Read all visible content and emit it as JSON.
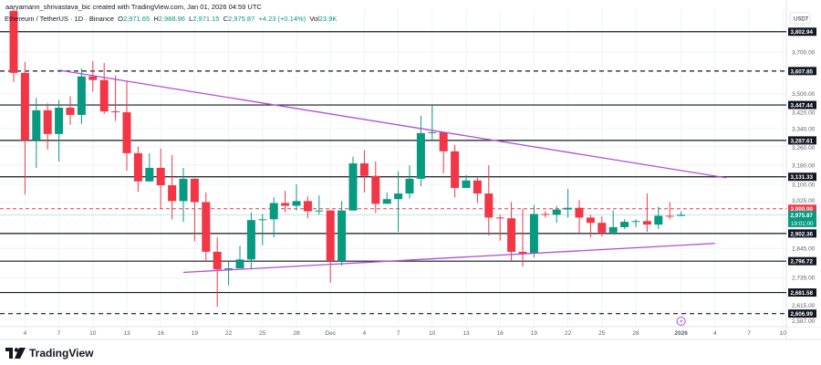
{
  "header": {
    "credit": "aaryamann_shrivastava_bic created with TradingView.com, Jan 01, 2026 04:59 UTC"
  },
  "legend": {
    "symbol": "Ethereum / TetherUS · 1D · Binance",
    "o_label": "O",
    "o": "2,971.65",
    "h_label": "H",
    "h": "2,988.96",
    "l_label": "L",
    "l": "2,971.15",
    "c_label": "C",
    "c": "2,975.87",
    "change": "+4.23 (+0.14%)",
    "vol_label": "Vol",
    "vol": "23.9K"
  },
  "logo": {
    "text": "TradingView"
  },
  "chart_data": {
    "type": "candlestick",
    "currency": "USDT",
    "y_scale": "log",
    "ylim": [
      2580,
      3930
    ],
    "colors": {
      "up": "#089981",
      "down": "#F23645",
      "trendline": "#B04FD6",
      "level": "#131722",
      "alert": "#F23645"
    },
    "candles": [
      {
        "d": "2025-11-03",
        "o": 3910,
        "h": 3920,
        "l": 3556,
        "c": 3599
      },
      {
        "d": "2025-11-04",
        "o": 3599,
        "h": 3652,
        "l": 3058,
        "c": 3288
      },
      {
        "d": "2025-11-05",
        "o": 3288,
        "h": 3480,
        "l": 3169,
        "c": 3423
      },
      {
        "d": "2025-11-06",
        "o": 3423,
        "h": 3455,
        "l": 3248,
        "c": 3316
      },
      {
        "d": "2025-11-07",
        "o": 3316,
        "h": 3471,
        "l": 3196,
        "c": 3435
      },
      {
        "d": "2025-11-08",
        "o": 3435,
        "h": 3488,
        "l": 3357,
        "c": 3402
      },
      {
        "d": "2025-11-09",
        "o": 3402,
        "h": 3621,
        "l": 3361,
        "c": 3582
      },
      {
        "d": "2025-11-10",
        "o": 3582,
        "h": 3656,
        "l": 3509,
        "c": 3565
      },
      {
        "d": "2025-11-11",
        "o": 3565,
        "h": 3647,
        "l": 3406,
        "c": 3418
      },
      {
        "d": "2025-11-12",
        "o": 3418,
        "h": 3586,
        "l": 3374,
        "c": 3414
      },
      {
        "d": "2025-11-13",
        "o": 3414,
        "h": 3560,
        "l": 3157,
        "c": 3232
      },
      {
        "d": "2025-11-14",
        "o": 3232,
        "h": 3260,
        "l": 3069,
        "c": 3112
      },
      {
        "d": "2025-11-15",
        "o": 3112,
        "h": 3232,
        "l": 3112,
        "c": 3169
      },
      {
        "d": "2025-11-16",
        "o": 3169,
        "h": 3252,
        "l": 3000,
        "c": 3096
      },
      {
        "d": "2025-11-17",
        "o": 3096,
        "h": 3224,
        "l": 2958,
        "c": 3031
      },
      {
        "d": "2025-11-18",
        "o": 3031,
        "h": 3169,
        "l": 2948,
        "c": 3123
      },
      {
        "d": "2025-11-19",
        "o": 3123,
        "h": 3125,
        "l": 2872,
        "c": 3027
      },
      {
        "d": "2025-11-20",
        "o": 3027,
        "h": 3066,
        "l": 2794,
        "c": 2832
      },
      {
        "d": "2025-11-21",
        "o": 2832,
        "h": 2887,
        "l": 2631,
        "c": 2766
      },
      {
        "d": "2025-11-22",
        "o": 2766,
        "h": 2797,
        "l": 2708,
        "c": 2770
      },
      {
        "d": "2025-11-23",
        "o": 2770,
        "h": 2855,
        "l": 2770,
        "c": 2803
      },
      {
        "d": "2025-11-24",
        "o": 2803,
        "h": 2986,
        "l": 2766,
        "c": 2955
      },
      {
        "d": "2025-11-25",
        "o": 2955,
        "h": 2979,
        "l": 2857,
        "c": 2958
      },
      {
        "d": "2025-11-26",
        "o": 2958,
        "h": 3046,
        "l": 2887,
        "c": 3023
      },
      {
        "d": "2025-11-27",
        "o": 3023,
        "h": 3073,
        "l": 2986,
        "c": 3012
      },
      {
        "d": "2025-11-28",
        "o": 3012,
        "h": 3100,
        "l": 2993,
        "c": 3031
      },
      {
        "d": "2025-11-29",
        "o": 3031,
        "h": 3050,
        "l": 2962,
        "c": 2990
      },
      {
        "d": "2025-11-30",
        "o": 2990,
        "h": 3054,
        "l": 2976,
        "c": 2993
      },
      {
        "d": "2025-12-01",
        "o": 2993,
        "h": 2995,
        "l": 2717,
        "c": 2797
      },
      {
        "d": "2025-12-02",
        "o": 2797,
        "h": 3031,
        "l": 2780,
        "c": 2993
      },
      {
        "d": "2025-12-03",
        "o": 2993,
        "h": 3216,
        "l": 2993,
        "c": 3188
      },
      {
        "d": "2025-12-04",
        "o": 3188,
        "h": 3244,
        "l": 3066,
        "c": 3135
      },
      {
        "d": "2025-12-05",
        "o": 3135,
        "h": 3196,
        "l": 2983,
        "c": 3020
      },
      {
        "d": "2025-12-06",
        "o": 3020,
        "h": 3066,
        "l": 3020,
        "c": 3039
      },
      {
        "d": "2025-12-07",
        "o": 3039,
        "h": 3154,
        "l": 2909,
        "c": 3062
      },
      {
        "d": "2025-12-08",
        "o": 3062,
        "h": 3180,
        "l": 3042,
        "c": 3123
      },
      {
        "d": "2025-12-09",
        "o": 3123,
        "h": 3398,
        "l": 3092,
        "c": 3320
      },
      {
        "d": "2025-12-10",
        "o": 3320,
        "h": 3447,
        "l": 3292,
        "c": 3324
      },
      {
        "d": "2025-12-11",
        "o": 3324,
        "h": 3326,
        "l": 3146,
        "c": 3240
      },
      {
        "d": "2025-12-12",
        "o": 3240,
        "h": 3268,
        "l": 3046,
        "c": 3085
      },
      {
        "d": "2025-12-13",
        "o": 3085,
        "h": 3139,
        "l": 3085,
        "c": 3116
      },
      {
        "d": "2025-12-14",
        "o": 3116,
        "h": 3127,
        "l": 3023,
        "c": 3062
      },
      {
        "d": "2025-12-15",
        "o": 3062,
        "h": 3180,
        "l": 2894,
        "c": 2965
      },
      {
        "d": "2025-12-16",
        "o": 2965,
        "h": 2976,
        "l": 2875,
        "c": 2962
      },
      {
        "d": "2025-12-17",
        "o": 2962,
        "h": 3027,
        "l": 2794,
        "c": 2832
      },
      {
        "d": "2025-12-18",
        "o": 2832,
        "h": 3000,
        "l": 2777,
        "c": 2826
      },
      {
        "d": "2025-12-19",
        "o": 2826,
        "h": 3016,
        "l": 2810,
        "c": 2979
      },
      {
        "d": "2025-12-20",
        "o": 2979,
        "h": 2990,
        "l": 2965,
        "c": 2976
      },
      {
        "d": "2025-12-21",
        "o": 2976,
        "h": 3012,
        "l": 2944,
        "c": 2997
      },
      {
        "d": "2025-12-22",
        "o": 2997,
        "h": 3081,
        "l": 2965,
        "c": 3004
      },
      {
        "d": "2025-12-23",
        "o": 3004,
        "h": 3035,
        "l": 2906,
        "c": 2965
      },
      {
        "d": "2025-12-24",
        "o": 2965,
        "h": 2976,
        "l": 2887,
        "c": 2944
      },
      {
        "d": "2025-12-25",
        "o": 2944,
        "h": 2969,
        "l": 2891,
        "c": 2906
      },
      {
        "d": "2025-12-26",
        "o": 2906,
        "h": 2993,
        "l": 2898,
        "c": 2927
      },
      {
        "d": "2025-12-27",
        "o": 2927,
        "h": 2958,
        "l": 2920,
        "c": 2948
      },
      {
        "d": "2025-12-28",
        "o": 2948,
        "h": 2958,
        "l": 2927,
        "c": 2951
      },
      {
        "d": "2025-12-29",
        "o": 2951,
        "h": 3062,
        "l": 2909,
        "c": 2937
      },
      {
        "d": "2025-12-30",
        "o": 2937,
        "h": 3008,
        "l": 2920,
        "c": 2972
      },
      {
        "d": "2025-12-31",
        "o": 2972,
        "h": 3027,
        "l": 2958,
        "c": 2969
      },
      {
        "d": "2026-01-01",
        "o": 2971.65,
        "h": 2988.96,
        "l": 2971.15,
        "c": 2975.87
      }
    ],
    "levels": [
      {
        "price": 3802.94,
        "label": "3,802.94",
        "style": "solid"
      },
      {
        "price": 3607.85,
        "label": "3,607.85",
        "style": "dashed"
      },
      {
        "price": 3447.44,
        "label": "3,447.44",
        "style": "solid"
      },
      {
        "price": 3287.61,
        "label": "3,287.61",
        "style": "solid"
      },
      {
        "price": 3131.33,
        "label": "3,131.33",
        "style": "solid"
      },
      {
        "price": 2902.36,
        "label": "2,902.36",
        "style": "solid"
      },
      {
        "price": 2796.72,
        "label": "2,796.72",
        "style": "solid"
      },
      {
        "price": 2681.58,
        "label": "2,681.58",
        "style": "solid"
      },
      {
        "price": 2606.99,
        "label": "2,606.99",
        "style": "dashed"
      }
    ],
    "alert_line": {
      "price": 3000.0,
      "label": "3,000.00"
    },
    "last_price": {
      "price": 2975.87,
      "label": "2,975.87",
      "countdown": "19:01:00"
    },
    "trendlines": [
      {
        "from": {
          "d": "2025-11-07",
          "p": 3612
        },
        "to": {
          "d": "2026-01-05",
          "p": 3127
        }
      },
      {
        "from": {
          "d": "2025-11-18",
          "p": 2755
        },
        "to": {
          "d": "2026-01-04",
          "p": 2864
        }
      }
    ],
    "y_ticks": [
      {
        "p": 3700,
        "label": "3,700.00"
      },
      {
        "p": 3500,
        "label": "3,500.00"
      },
      {
        "p": 3420,
        "label": "3,420.00"
      },
      {
        "p": 3340,
        "label": "3,340.00"
      },
      {
        "p": 3260,
        "label": "3,260.00"
      },
      {
        "p": 3180,
        "label": "3,180.00"
      },
      {
        "p": 3100,
        "label": "3,100.00"
      },
      {
        "p": 3025,
        "label": "3,025.00"
      },
      {
        "p": 2845,
        "label": "2,845.00"
      },
      {
        "p": 2735,
        "label": "2,735.00"
      },
      {
        "p": 2615,
        "label": "2,615.00"
      },
      {
        "p": 2587,
        "label": "2,587.00"
      }
    ],
    "x_ticks": [
      {
        "d": "2025-11-04",
        "label": "4"
      },
      {
        "d": "2025-11-07",
        "label": "7"
      },
      {
        "d": "2025-11-10",
        "label": "10"
      },
      {
        "d": "2025-11-13",
        "label": "13"
      },
      {
        "d": "2025-11-16",
        "label": "16"
      },
      {
        "d": "2025-11-19",
        "label": "19"
      },
      {
        "d": "2025-11-22",
        "label": "22"
      },
      {
        "d": "2025-11-25",
        "label": "25"
      },
      {
        "d": "2025-11-28",
        "label": "28"
      },
      {
        "d": "2025-12-01",
        "label": "Dec"
      },
      {
        "d": "2025-12-04",
        "label": "4"
      },
      {
        "d": "2025-12-07",
        "label": "7"
      },
      {
        "d": "2025-12-10",
        "label": "10"
      },
      {
        "d": "2025-12-13",
        "label": "13"
      },
      {
        "d": "2025-12-16",
        "label": "16"
      },
      {
        "d": "2025-12-19",
        "label": "19"
      },
      {
        "d": "2025-12-22",
        "label": "22"
      },
      {
        "d": "2025-12-25",
        "label": "25"
      },
      {
        "d": "2025-12-28",
        "label": "28"
      },
      {
        "d": "2026-01-01",
        "label": "2026"
      },
      {
        "d": "2026-01-04",
        "label": "4"
      },
      {
        "d": "2026-01-07",
        "label": "7"
      },
      {
        "d": "2026-01-10",
        "label": "10"
      }
    ]
  }
}
